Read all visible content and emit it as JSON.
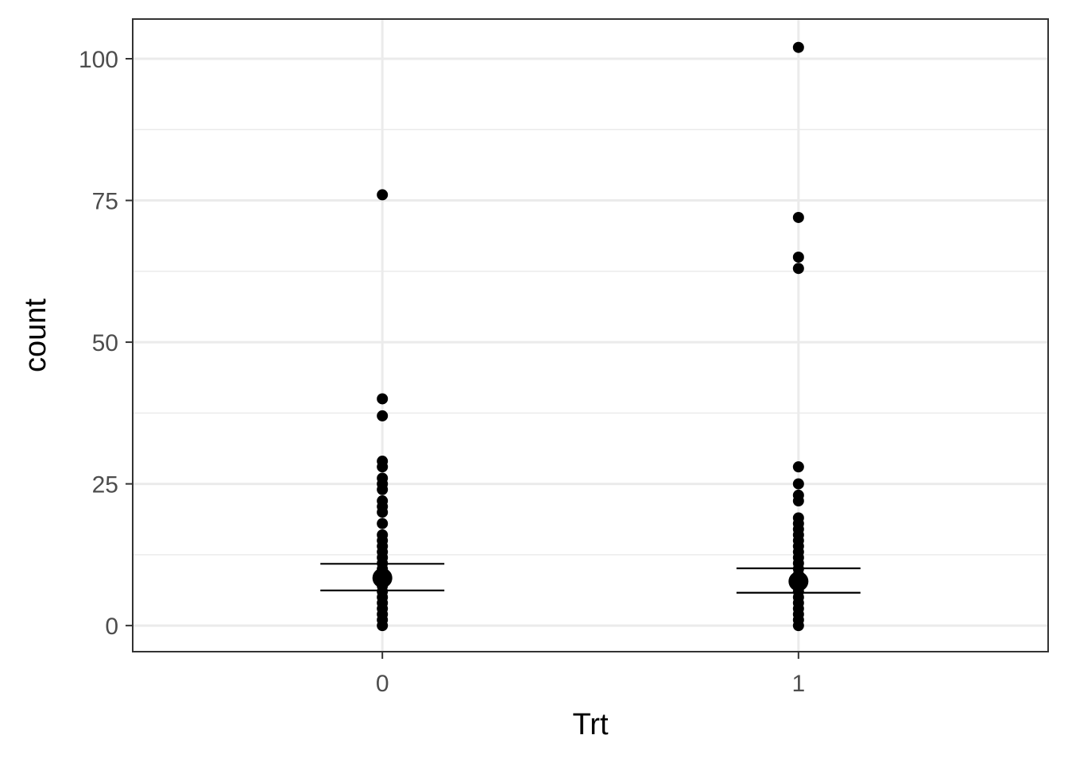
{
  "chart_data": {
    "type": "scatter",
    "xlabel": "Trt",
    "ylabel": "count",
    "categories": [
      "0",
      "1"
    ],
    "ylim": [
      -4.6,
      107
    ],
    "y_ticks": [
      0,
      25,
      50,
      75,
      100
    ],
    "y_tick_labels": [
      "0",
      "25",
      "50",
      "75",
      "100"
    ],
    "grid": true,
    "series": [
      {
        "category": "0",
        "values": [
          76,
          40,
          37,
          29,
          28,
          26,
          25,
          24,
          22,
          21,
          20,
          18,
          16,
          15,
          14,
          13,
          12,
          11,
          10,
          9,
          8,
          7,
          6,
          5,
          4,
          3,
          2,
          1,
          0
        ],
        "mean": 8.4,
        "ci_lower": 6.2,
        "ci_upper": 10.9
      },
      {
        "category": "1",
        "values": [
          102,
          72,
          65,
          63,
          28,
          25,
          23,
          22,
          19,
          18,
          17,
          16,
          15,
          14,
          13,
          12,
          11,
          10,
          9,
          8,
          7,
          6,
          5,
          4,
          3,
          2,
          1,
          0
        ],
        "mean": 7.8,
        "ci_lower": 5.8,
        "ci_upper": 10.1
      }
    ],
    "colors": {
      "points": "#000000",
      "grid": "#ebebeb",
      "panel_border": "#333333",
      "tick_text": "#4d4d4d"
    }
  }
}
